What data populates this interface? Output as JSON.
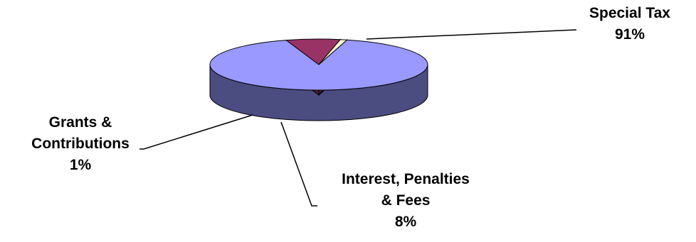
{
  "chart_data": {
    "type": "pie",
    "style": "3d",
    "categories": [
      "Special Tax",
      "Interest, Penalties & Fees",
      "Grants & Contributions"
    ],
    "values": [
      91,
      8,
      1
    ],
    "labels": [
      {
        "lines": [
          "Special Tax",
          "91%"
        ]
      },
      {
        "lines": [
          "Interest, Penalties",
          "& Fees",
          "8%"
        ]
      },
      {
        "lines": [
          "Grants &",
          "Contributions",
          "1%"
        ]
      }
    ],
    "colors": {
      "special_top": "#9999ff",
      "special_side": "#4b4c80",
      "interest_top": "#993366",
      "interest_side": "#4f1a33",
      "grants_top": "#ffffcc",
      "grants_side": "#808066",
      "edge": "#000000",
      "leader": "#000000"
    },
    "legend": "none"
  }
}
